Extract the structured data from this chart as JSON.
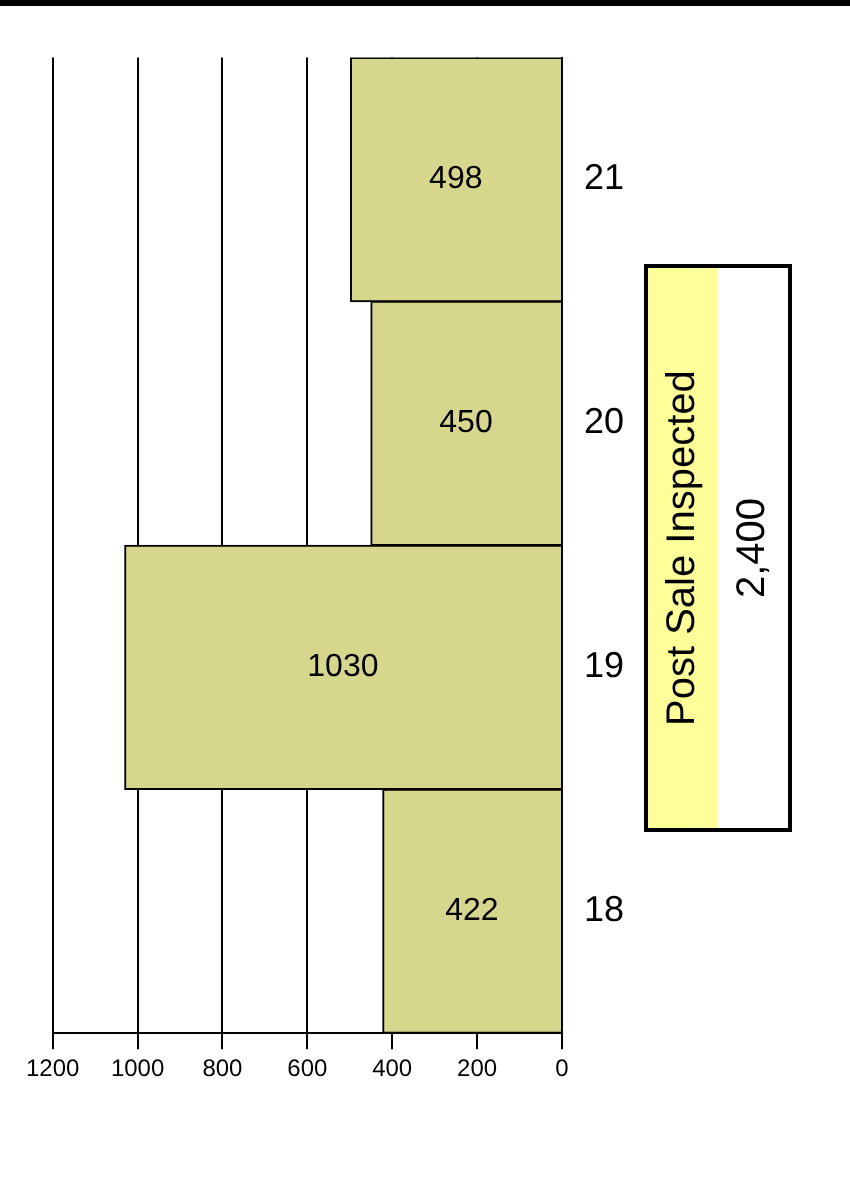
{
  "chart_data": {
    "type": "bar",
    "orientation": "horizontal",
    "categories": [
      "21",
      "20",
      "19",
      "18"
    ],
    "values": [
      498,
      450,
      1030,
      422
    ],
    "color": "#d6d68c",
    "xlim": [
      1200,
      0
    ],
    "xticks": [
      1200,
      1000,
      800,
      600,
      400,
      200,
      0
    ],
    "grid": "x",
    "data_labels": true,
    "annotations": [
      "Post Sale Inspected",
      "2,400"
    ]
  }
}
